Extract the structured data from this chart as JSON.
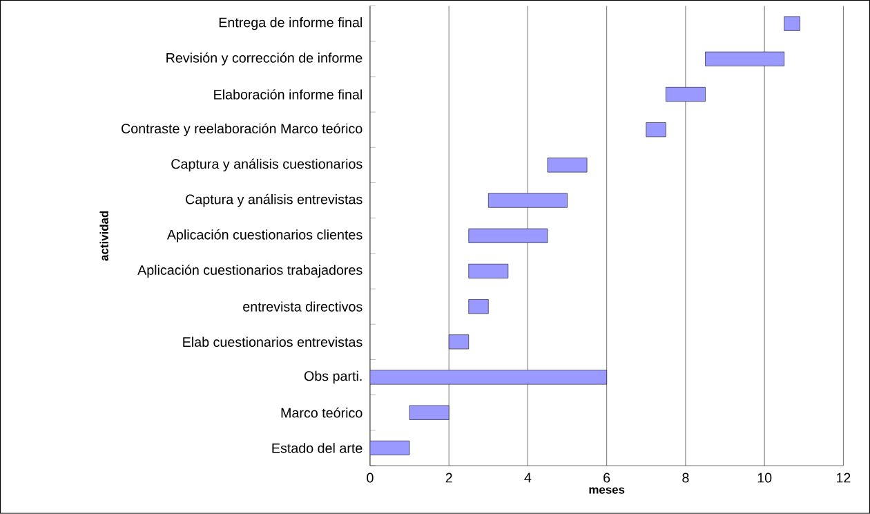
{
  "chart_data": {
    "type": "bar",
    "orientation": "horizontal",
    "xlabel": "meses",
    "ylabel": "actividad",
    "categories": [
      "Entrega de informe final",
      "Revisión  y corrección de informe",
      "Elaboración informe final",
      "Contraste y reelaboración Marco teórico",
      "Captura  y análisis  cuestionarios",
      "Captura  y análisis  entrevistas",
      "Aplicación  cuestionarios   clientes",
      "Aplicación  cuestionarios trabajadores",
      "entrevista directivos",
      "Elab  cuestionarios  entrevistas",
      "Obs parti.",
      "Marco teórico",
      "Estado del arte"
    ],
    "base": [
      10.5,
      8.5,
      7.5,
      7,
      4.5,
      3,
      2.5,
      2.5,
      2.5,
      2,
      0,
      1,
      0
    ],
    "values": [
      0.4,
      2,
      1,
      0.5,
      1,
      2,
      2,
      1,
      0.5,
      0.5,
      6,
      1,
      1
    ],
    "color": "#9999ff",
    "xlim": [
      0,
      12
    ],
    "xticks": [
      0,
      2,
      4,
      6,
      8,
      10,
      12
    ],
    "grid": "x"
  }
}
